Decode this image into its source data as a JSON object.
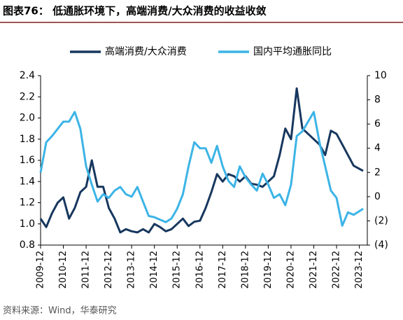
{
  "chart_data": {
    "type": "line",
    "title": "图表76：  低通胀环境下，高端消费/大众消费的收益收敛",
    "source": "资料来源：Wind，华泰研究",
    "x": [
      "2009-12",
      "2010-03",
      "2010-06",
      "2010-09",
      "2010-12",
      "2011-03",
      "2011-06",
      "2011-09",
      "2011-12",
      "2012-03",
      "2012-06",
      "2012-09",
      "2012-12",
      "2013-03",
      "2013-06",
      "2013-09",
      "2013-12",
      "2014-03",
      "2014-06",
      "2014-09",
      "2014-12",
      "2015-03",
      "2015-06",
      "2015-09",
      "2015-12",
      "2016-03",
      "2016-06",
      "2016-09",
      "2016-12",
      "2017-03",
      "2017-06",
      "2017-09",
      "2017-12",
      "2018-03",
      "2018-06",
      "2018-09",
      "2018-12",
      "2019-03",
      "2019-06",
      "2019-09",
      "2019-12",
      "2020-03",
      "2020-06",
      "2020-09",
      "2020-12",
      "2021-03",
      "2021-06",
      "2021-09",
      "2021-12",
      "2022-03",
      "2022-06",
      "2022-09",
      "2022-12",
      "2023-03",
      "2023-06",
      "2023-09",
      "2023-12",
      "2024-02"
    ],
    "series": [
      {
        "name": "高端消费/大众消费",
        "color": "#17375e",
        "axis": "y",
        "values": [
          1.05,
          0.97,
          1.1,
          1.2,
          1.25,
          1.05,
          1.15,
          1.3,
          1.35,
          1.6,
          1.35,
          1.35,
          1.15,
          1.05,
          0.92,
          0.95,
          0.93,
          0.92,
          0.95,
          0.92,
          1.0,
          0.97,
          0.93,
          0.95,
          1.0,
          1.05,
          0.98,
          1.02,
          1.03,
          1.15,
          1.3,
          1.47,
          1.4,
          1.47,
          1.45,
          1.4,
          1.45,
          1.38,
          1.37,
          1.35,
          1.4,
          1.45,
          1.65,
          1.9,
          1.8,
          2.28,
          1.9,
          1.85,
          1.8,
          1.75,
          1.65,
          1.88,
          1.85,
          1.75,
          1.65,
          1.55,
          1.52,
          1.5
        ]
      },
      {
        "name": "国内平均通胀同比",
        "color": "#3cb4e6",
        "axis": "y2",
        "values": [
          2,
          4.5,
          5,
          5.6,
          6.2,
          6.2,
          7,
          5.6,
          2.5,
          1,
          -0.4,
          0.2,
          -0.1,
          0.5,
          0.8,
          0.2,
          0,
          0.8,
          -0.4,
          -1.6,
          -1.7,
          -1.9,
          -2.1,
          -1.8,
          -1,
          0.2,
          2.5,
          4.5,
          4,
          4,
          2.8,
          4.2,
          2.5,
          1.3,
          0.8,
          2.5,
          1.6,
          1,
          0.5,
          1.9,
          1,
          -0.1,
          0.2,
          -0.7,
          1,
          5,
          5.4,
          6.2,
          7,
          4.5,
          2.5,
          0.5,
          -0.1,
          -2.4,
          -1.3,
          -1.5,
          -1.2,
          -1
        ]
      }
    ],
    "ylim": [
      0.8,
      2.4
    ],
    "yticks": [
      0.8,
      {
        "value": 1,
        "label": "1.0"
      },
      1.2,
      1.4,
      1.6,
      1.8,
      {
        "value": 2,
        "label": "2.0"
      },
      2.2,
      2.4
    ],
    "y2lim": [
      -4,
      10
    ],
    "y2ticks": [
      {
        "value": -4,
        "label": "(4)"
      },
      {
        "value": -2,
        "label": "(2)"
      },
      0,
      2,
      4,
      6,
      8,
      10
    ],
    "xticks": [
      "2009-12",
      "2010-12",
      "2011-12",
      "2012-12",
      "2013-12",
      "2014-12",
      "2015-12",
      "2016-12",
      "2017-12",
      "2018-12",
      "2019-12",
      "2020-12",
      "2021-12",
      "2022-12",
      "2023-12"
    ]
  }
}
